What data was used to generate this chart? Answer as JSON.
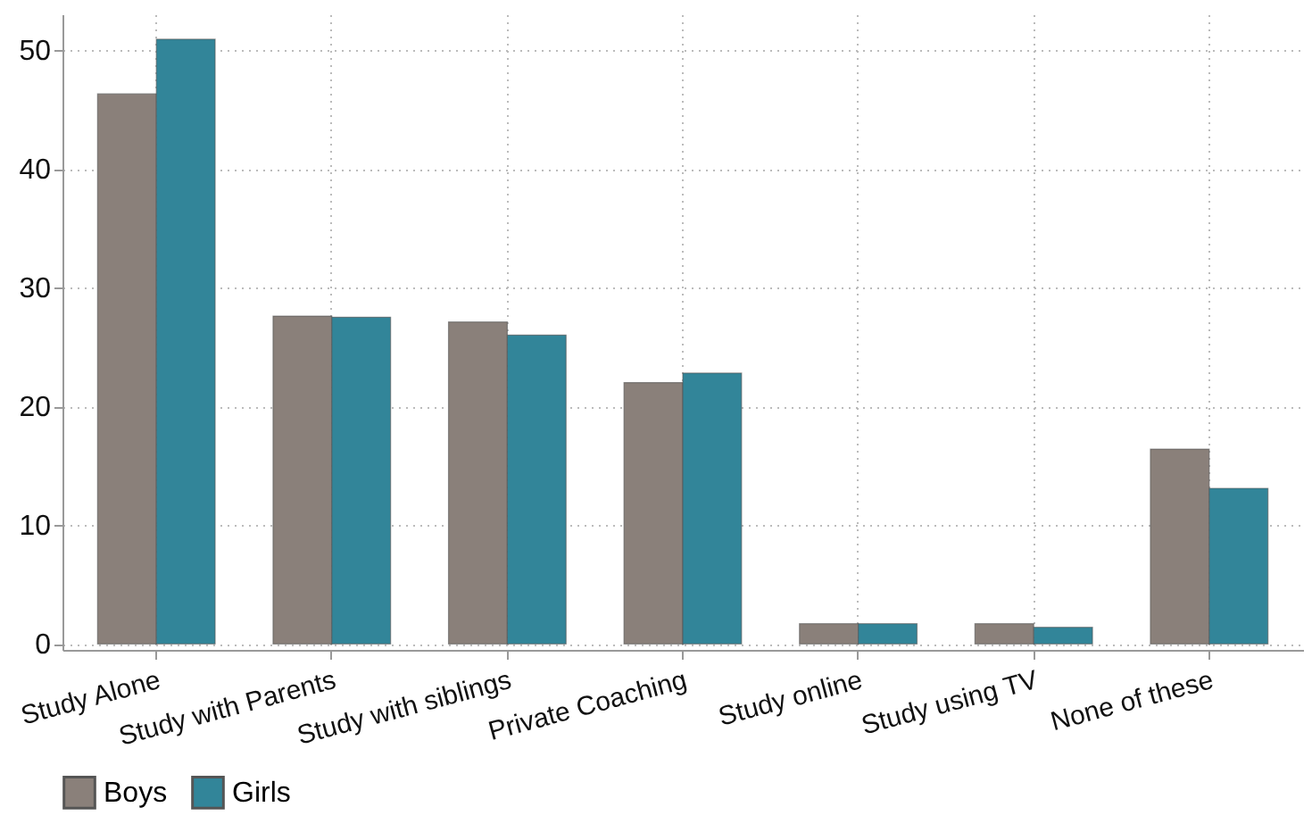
{
  "chart_data": {
    "type": "bar",
    "categories": [
      "Study Alone",
      "Study with Parents",
      "Study with siblings",
      "Private Coaching",
      "Study online",
      "Study using TV",
      "None of these"
    ],
    "series": [
      {
        "name": "Boys",
        "color": "#8a807a",
        "values": [
          46.3,
          27.6,
          27.1,
          22.0,
          1.7,
          1.7,
          16.4
        ]
      },
      {
        "name": "Girls",
        "color": "#328599",
        "values": [
          50.9,
          27.5,
          26.0,
          22.8,
          1.7,
          1.4,
          13.1
        ]
      }
    ],
    "ylim": [
      -0.5,
      53
    ],
    "yticks": [
      0,
      10,
      20,
      30,
      40,
      50
    ],
    "grid": true,
    "legend": "bottom"
  }
}
